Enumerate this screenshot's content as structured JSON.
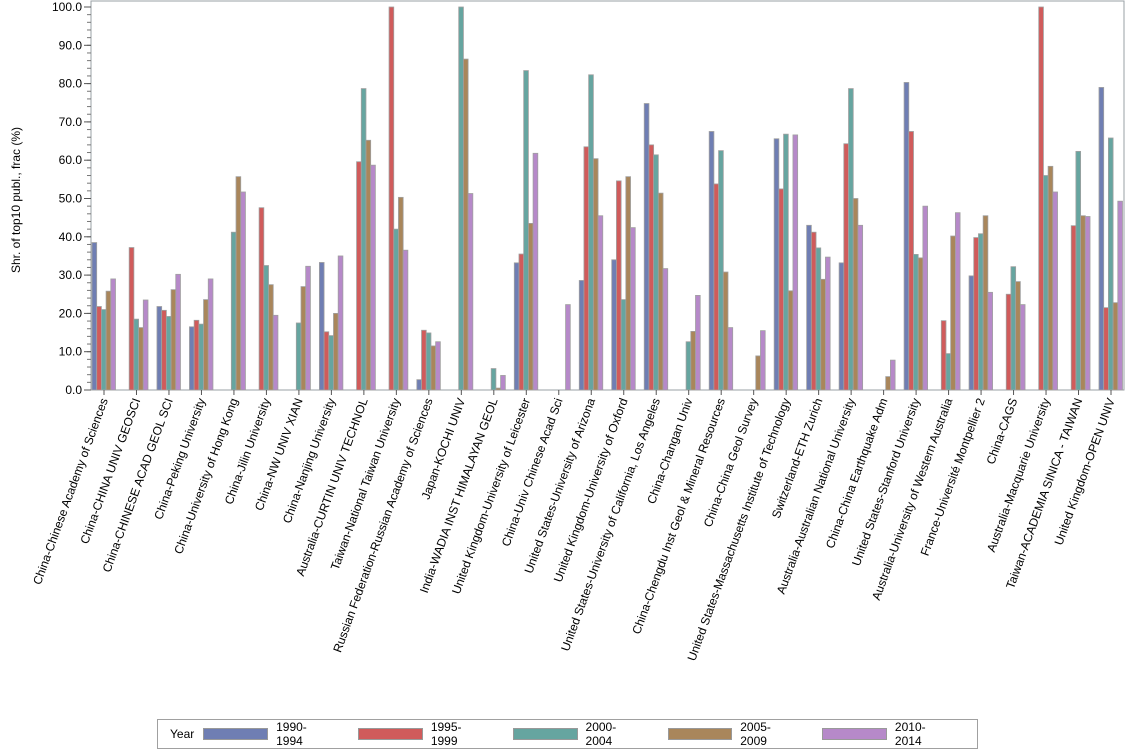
{
  "chart_data": {
    "type": "bar",
    "ylabel": "Shr. of top10 publ., frac (%)",
    "xlabel": "",
    "ylim": [
      0,
      100
    ],
    "yticks": [
      "0.0",
      "10.0",
      "20.0",
      "30.0",
      "40.0",
      "50.0",
      "60.0",
      "70.0",
      "80.0",
      "90.0",
      "100.0"
    ],
    "legend_title": "Year",
    "legend_position": "bottom",
    "categories": [
      "China-Chinese Academy of Sciences",
      "China-CHINA UNIV GEOSCI",
      "China-CHINESE ACAD GEOL SCI",
      "China-Peking University",
      "China-University of Hong Kong",
      "China-Jilin University",
      "China-NW UNIV XIAN",
      "China-Nanjing University",
      "Australia-CURTIN UNIV TECHNOL",
      "Taiwan-National Taiwan University",
      "Russian Federation-Russian Academy of Sciences",
      "Japan-KOCHI UNIV",
      "India-WADIA INST HIMALAYAN GEOL",
      "United Kingdom-University of Leicester",
      "China-Univ Chinese Acad Sci",
      "United States-University of Arizona",
      "United Kingdom-University of Oxford",
      "United States-University of California, Los Angeles",
      "China-Changan Univ",
      "China-Chengdu Inst Geol & Mineral Resources",
      "China-China Geol Survey",
      "United States-Massachusetts Institute of Technology",
      "Switzerland-ETH Zurich",
      "Australia-Australian National University",
      "China-China Earthquake Adm",
      "United States-Stanford University",
      "Australia-University of Western Australia",
      "France-Université Montpellier 2",
      "China-CAGS",
      "Australia-Macquarie University",
      "Taiwan-ACADEMIA SINICA - TAIWAN",
      "United Kingdom-OPEN UNIV"
    ],
    "series": [
      {
        "name": "1990-1994",
        "color": "#6f7eb3",
        "values": [
          38.5,
          null,
          21.8,
          16.5,
          null,
          null,
          null,
          33.3,
          null,
          null,
          2.7,
          null,
          null,
          33.2,
          null,
          28.6,
          34,
          74.8,
          null,
          67.5,
          null,
          65.6,
          43,
          33.2,
          null,
          80.3,
          null,
          29.8,
          null,
          null,
          null,
          79
        ]
      },
      {
        "name": "1995-1999",
        "color": "#d05b5b",
        "values": [
          21.8,
          37.2,
          20.8,
          18.2,
          null,
          47.6,
          null,
          15.2,
          59.6,
          100,
          15.6,
          null,
          null,
          35.5,
          null,
          63.5,
          54.6,
          64,
          null,
          53.8,
          null,
          52.5,
          41.2,
          64.3,
          null,
          67.5,
          18.1,
          39.8,
          25,
          100,
          42.9,
          21.5
        ]
      },
      {
        "name": "2000-2004",
        "color": "#66a5a0",
        "values": [
          21,
          18.5,
          19.2,
          17.2,
          41.2,
          32.5,
          17.5,
          14.2,
          78.7,
          42,
          14.9,
          100,
          5.6,
          83.4,
          null,
          82.3,
          23.6,
          61.4,
          12.6,
          62.5,
          null,
          66.8,
          37.1,
          78.7,
          null,
          35.4,
          9.5,
          40.8,
          32.2,
          56,
          62.3,
          65.8
        ]
      },
      {
        "name": "2005-2009",
        "color": "#a9865b",
        "values": [
          25.8,
          16.3,
          26.2,
          23.6,
          55.7,
          27.5,
          27,
          20,
          65.2,
          50.3,
          11.5,
          86.4,
          0.5,
          43.5,
          null,
          60.4,
          55.7,
          51.4,
          15.3,
          30.8,
          8.9,
          25.9,
          28.9,
          50,
          3.5,
          34.5,
          40.2,
          45.5,
          28.3,
          58.4,
          45.5,
          22.8
        ]
      },
      {
        "name": "2010-2014",
        "color": "#b689c9",
        "values": [
          29,
          23.5,
          30.2,
          29,
          51.7,
          19.5,
          32.3,
          35,
          58.7,
          36.5,
          12.6,
          51.3,
          3.8,
          61.8,
          22.3,
          45.5,
          42.4,
          31.7,
          24.7,
          16.3,
          15.5,
          66.6,
          34.7,
          43,
          7.8,
          48,
          46.3,
          25.5,
          22.3,
          51.7,
          45.3,
          49.3
        ]
      }
    ]
  }
}
